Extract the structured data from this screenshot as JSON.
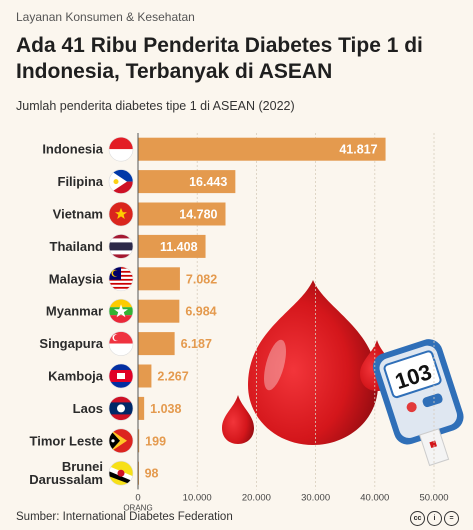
{
  "header": {
    "category": "Layanan Konsumen & Kesehatan",
    "title": "Ada 41 Ribu Penderita Diabetes Tipe 1 di Indonesia, Terbanyak di ASEAN",
    "subtitle": "Jumlah penderita diabetes tipe 1 di ASEAN (2022)"
  },
  "footer": {
    "source": "Sumber: International Diabetes Federation"
  },
  "glucometer": {
    "reading": "103"
  },
  "colors": {
    "bar": "#e49a4e",
    "background": "#fbf6ee",
    "blood": "#d4161b"
  },
  "chart_data": {
    "type": "bar",
    "orientation": "horizontal",
    "title": "Jumlah penderita diabetes tipe 1 di ASEAN (2022)",
    "categories": [
      "Indonesia",
      "Filipina",
      "Vietnam",
      "Thailand",
      "Malaysia",
      "Myanmar",
      "Singapura",
      "Kamboja",
      "Laos",
      "Timor Leste",
      "Brunei Darussalam"
    ],
    "category_lines": [
      [
        "Indonesia"
      ],
      [
        "Filipina"
      ],
      [
        "Vietnam"
      ],
      [
        "Thailand"
      ],
      [
        "Malaysia"
      ],
      [
        "Myanmar"
      ],
      [
        "Singapura"
      ],
      [
        "Kamboja"
      ],
      [
        "Laos"
      ],
      [
        "Timor Leste"
      ],
      [
        "Brunei",
        "Darussalam"
      ]
    ],
    "values": [
      41817,
      16443,
      14780,
      11408,
      7082,
      6984,
      6187,
      2267,
      1038,
      199,
      98
    ],
    "value_labels": [
      "41.817",
      "16.443",
      "14.780",
      "11.408",
      "7.082",
      "6.984",
      "6.187",
      "2.267",
      "1.038",
      "199",
      "98"
    ],
    "xlim": [
      0,
      50000
    ],
    "x_ticks": [
      0,
      10000,
      20000,
      30000,
      40000,
      50000
    ],
    "x_tick_labels": [
      "0",
      "10.000",
      "20.000",
      "30.000",
      "40.000",
      "50.000"
    ],
    "xlabel": "ORANG",
    "flags": [
      "indonesia-flag",
      "philippines-flag",
      "vietnam-flag",
      "thailand-flag",
      "malaysia-flag",
      "myanmar-flag",
      "singapore-flag",
      "cambodia-flag",
      "laos-flag",
      "timor-leste-flag",
      "brunei-flag"
    ]
  }
}
